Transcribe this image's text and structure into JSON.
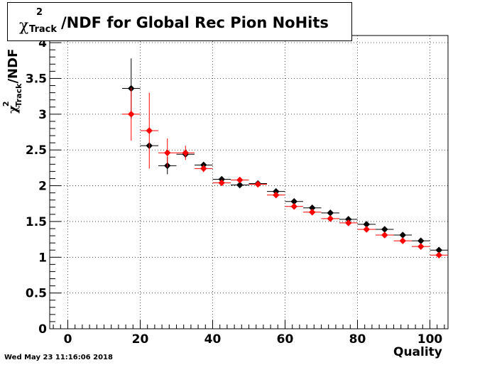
{
  "title": {
    "symbol": "χ",
    "superscript": "2",
    "subscript": "Track",
    "text": "/NDF for Global Rec Pion NoHits"
  },
  "ylabel": {
    "symbol": "χ",
    "superscript": "2",
    "subscript": "Track",
    "text": "/NDF"
  },
  "xlabel": "Quality",
  "timestamp": "Wed May 23 11:16:06 2018",
  "colors": {
    "series_black": "#000000",
    "series_red": "#ff0000",
    "grid": "#000000",
    "background": "#ffffff"
  },
  "chart_data": {
    "type": "scatter",
    "title": "χ²_Track/NDF for Global Rec Pion NoHits",
    "xlabel": "Quality",
    "ylabel": "χ²_Track/NDF",
    "xlim": [
      -5,
      105
    ],
    "ylim": [
      0,
      4.1
    ],
    "x_ticks": [
      0,
      20,
      40,
      60,
      80,
      100
    ],
    "y_ticks": [
      0,
      0.5,
      1,
      1.5,
      2,
      2.5,
      3,
      3.5,
      4
    ],
    "x_tick_labels": [
      "0",
      "20",
      "40",
      "60",
      "80",
      "100"
    ],
    "y_tick_labels": [
      "0",
      "0.5",
      "1",
      "1.5",
      "2",
      "2.5",
      "3",
      "3.5",
      "4"
    ],
    "grid": true,
    "x_bin_half_width": 2.5,
    "series": [
      {
        "color": "#000000",
        "points": [
          {
            "x": 17.5,
            "y": 3.36,
            "err": 0.42
          },
          {
            "x": 22.5,
            "y": 2.56,
            "err": 0.0
          },
          {
            "x": 27.5,
            "y": 2.28,
            "err": 0.12
          },
          {
            "x": 32.5,
            "y": 2.44,
            "err": 0.05
          },
          {
            "x": 37.5,
            "y": 2.29,
            "err": 0.04
          },
          {
            "x": 42.5,
            "y": 2.09,
            "err": 0.03
          },
          {
            "x": 47.5,
            "y": 2.01,
            "err": 0.02
          },
          {
            "x": 52.5,
            "y": 2.03,
            "err": 0.02
          },
          {
            "x": 57.5,
            "y": 1.92,
            "err": 0.02
          },
          {
            "x": 62.5,
            "y": 1.78,
            "err": 0.02
          },
          {
            "x": 67.5,
            "y": 1.69,
            "err": 0.02
          },
          {
            "x": 72.5,
            "y": 1.62,
            "err": 0.02
          },
          {
            "x": 77.5,
            "y": 1.53,
            "err": 0.02
          },
          {
            "x": 82.5,
            "y": 1.46,
            "err": 0.02
          },
          {
            "x": 87.5,
            "y": 1.39,
            "err": 0.02
          },
          {
            "x": 92.5,
            "y": 1.31,
            "err": 0.02
          },
          {
            "x": 97.5,
            "y": 1.23,
            "err": 0.02
          },
          {
            "x": 102.5,
            "y": 1.1,
            "err": 0.02
          }
        ]
      },
      {
        "color": "#ff0000",
        "points": [
          {
            "x": 17.5,
            "y": 3.0,
            "err": 0.37
          },
          {
            "x": 22.5,
            "y": 2.77,
            "err": 0.53
          },
          {
            "x": 27.5,
            "y": 2.46,
            "err": 0.2
          },
          {
            "x": 32.5,
            "y": 2.46,
            "err": 0.1
          },
          {
            "x": 37.5,
            "y": 2.24,
            "err": 0.05
          },
          {
            "x": 42.5,
            "y": 2.04,
            "err": 0.03
          },
          {
            "x": 47.5,
            "y": 2.08,
            "err": 0.03
          },
          {
            "x": 52.5,
            "y": 2.02,
            "err": 0.02
          },
          {
            "x": 57.5,
            "y": 1.87,
            "err": 0.02
          },
          {
            "x": 62.5,
            "y": 1.71,
            "err": 0.02
          },
          {
            "x": 67.5,
            "y": 1.63,
            "err": 0.02
          },
          {
            "x": 72.5,
            "y": 1.54,
            "err": 0.02
          },
          {
            "x": 77.5,
            "y": 1.48,
            "err": 0.02
          },
          {
            "x": 82.5,
            "y": 1.39,
            "err": 0.02
          },
          {
            "x": 87.5,
            "y": 1.31,
            "err": 0.02
          },
          {
            "x": 92.5,
            "y": 1.23,
            "err": 0.02
          },
          {
            "x": 97.5,
            "y": 1.15,
            "err": 0.02
          },
          {
            "x": 102.5,
            "y": 1.03,
            "err": 0.02
          }
        ]
      }
    ]
  }
}
